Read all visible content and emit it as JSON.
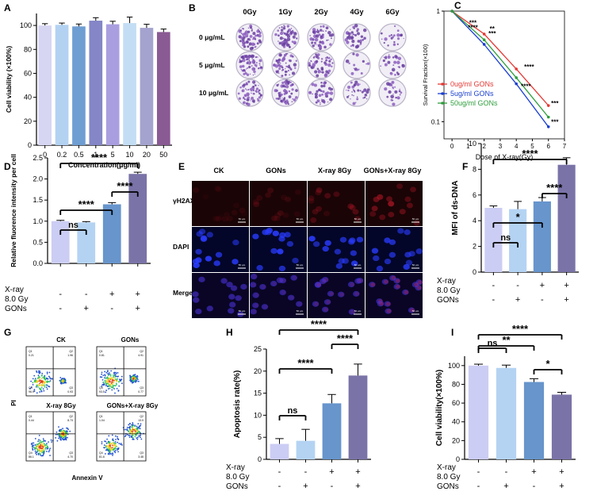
{
  "panel_letters": [
    "A",
    "B",
    "C",
    "D",
    "E",
    "F",
    "G",
    "H",
    "I"
  ],
  "chart_data": [
    {
      "id": "A",
      "type": "bar",
      "title": "",
      "xlabel": "Concentration(μg/ml)",
      "ylabel": "Cell viability (×100%)",
      "categories": [
        "0",
        "0.2",
        "0.5",
        "1",
        "5",
        "10",
        "20",
        "50"
      ],
      "values": [
        100,
        100.5,
        99.2,
        104,
        101,
        102,
        98,
        94.5
      ],
      "errors": [
        1.5,
        1.5,
        2,
        2.5,
        2.5,
        5,
        3,
        2.5
      ],
      "colors": [
        "#d6d6f3",
        "#b3d2f2",
        "#6f9ed3",
        "#8486c7",
        "#a99fe0",
        "#c3def4",
        "#a4a3cf",
        "#8a5a94"
      ],
      "yticks": [
        0,
        20,
        40,
        60,
        80,
        100
      ],
      "ylim": [
        0,
        110
      ]
    },
    {
      "id": "C",
      "type": "line",
      "title": "",
      "xlabel": "Dose of X-ray(Gy)",
      "ylabel": "Survival Fraction(×100)",
      "yscale": "log",
      "ylim": [
        0.07,
        1
      ],
      "xlim": [
        -0.5,
        7
      ],
      "xticks": [
        "0",
        "1",
        "2",
        "3",
        "4",
        "5",
        "6",
        "7"
      ],
      "yticks": [
        "1",
        "0.1"
      ],
      "legend_loc": "bottom-left",
      "series": [
        {
          "name": "0ug/ml  GONs",
          "color": "#e53935",
          "x": [
            0,
            2,
            4,
            6
          ],
          "y": [
            1,
            0.62,
            0.3,
            0.14
          ]
        },
        {
          "name": "5ug/ml  GONs",
          "color": "#1a3fd1",
          "x": [
            0,
            2,
            4,
            6
          ],
          "y": [
            1,
            0.5,
            0.22,
            0.09
          ]
        },
        {
          "name": "50ug/ml GONs",
          "color": "#2e9e3c",
          "x": [
            0,
            2,
            4,
            6
          ],
          "y": [
            1,
            0.55,
            0.25,
            0.11
          ]
        }
      ],
      "annotations": [
        "***",
        "****",
        "**",
        "***",
        "****",
        "****",
        "***",
        "***"
      ]
    },
    {
      "id": "D",
      "type": "bar",
      "title": "",
      "xlabel": "",
      "ylabel": "Relative fluorence intensity per cell",
      "categories": [
        "1",
        "2",
        "3",
        "4"
      ],
      "values": [
        1.0,
        0.97,
        1.4,
        2.12
      ],
      "errors": [
        0.02,
        0.02,
        0.04,
        0.04
      ],
      "colors": [
        "#cccdf4",
        "#b4d3f3",
        "#6795cc",
        "#7a73a8"
      ],
      "yticks": [
        "0.0",
        "0.5",
        "1.0",
        "1.5",
        "2.0",
        "2.5"
      ],
      "ylim": [
        0,
        2.5
      ],
      "brackets": [
        {
          "from": 0,
          "to": 1,
          "label": "ns"
        },
        {
          "from": 0,
          "to": 2,
          "label": "****"
        },
        {
          "from": 2,
          "to": 3,
          "label": "****"
        },
        {
          "from": 0,
          "to": 3,
          "label": "****"
        }
      ]
    },
    {
      "id": "F",
      "type": "bar",
      "title": "",
      "xlabel": "",
      "ylabel": "MFI of ds-DNA",
      "categories": [
        "1",
        "2",
        "3",
        "4"
      ],
      "values": [
        5.0,
        4.9,
        5.5,
        8.35
      ],
      "errors": [
        0.15,
        0.6,
        0.3,
        0.55
      ],
      "colors": [
        "#cccdf4",
        "#b4d3f3",
        "#6795cc",
        "#7a73a8"
      ],
      "yticks": [
        "0",
        "2",
        "4",
        "6",
        "8",
        "10"
      ],
      "ylim": [
        0,
        10
      ],
      "brackets": [
        {
          "from": 0,
          "to": 1,
          "label": "ns"
        },
        {
          "from": 0,
          "to": 2,
          "label": "*"
        },
        {
          "from": 2,
          "to": 3,
          "label": "****"
        },
        {
          "from": 0,
          "to": 3,
          "label": "****"
        }
      ]
    },
    {
      "id": "H",
      "type": "bar",
      "title": "",
      "xlabel": "",
      "ylabel": "Apoptosis rate(%)",
      "categories": [
        "1",
        "2",
        "3",
        "4"
      ],
      "values": [
        3.5,
        4.2,
        12.7,
        19.0
      ],
      "errors": [
        1.2,
        2.6,
        2.0,
        2.6
      ],
      "colors": [
        "#cccdf4",
        "#b4d3f3",
        "#6795cc",
        "#7a73a8"
      ],
      "yticks": [
        "0",
        "5",
        "10",
        "15",
        "20",
        "25"
      ],
      "ylim": [
        0,
        25
      ],
      "brackets": [
        {
          "from": 0,
          "to": 1,
          "label": "ns"
        },
        {
          "from": 0,
          "to": 2,
          "label": "****"
        },
        {
          "from": 2,
          "to": 3,
          "label": "****"
        },
        {
          "from": 0,
          "to": 3,
          "label": "****"
        }
      ]
    },
    {
      "id": "I",
      "type": "bar",
      "title": "",
      "xlabel": "",
      "ylabel": "Cell viability(×100%)",
      "categories": [
        "1",
        "2",
        "3",
        "4"
      ],
      "values": [
        100,
        97.5,
        82.5,
        69
      ],
      "errors": [
        1.5,
        3,
        3.5,
        2.5
      ],
      "colors": [
        "#cccdf4",
        "#b4d3f3",
        "#6795cc",
        "#7a73a8"
      ],
      "yticks": [
        "0",
        "20",
        "40",
        "60",
        "80",
        "100"
      ],
      "ylim": [
        0,
        110
      ],
      "brackets": [
        {
          "from": 0,
          "to": 1,
          "label": "ns"
        },
        {
          "from": 0,
          "to": 2,
          "label": "**"
        },
        {
          "from": 2,
          "to": 3,
          "label": "*"
        },
        {
          "from": 0,
          "to": 3,
          "label": "****"
        }
      ]
    }
  ],
  "treatment_table": {
    "labels": [
      "X-ray",
      "8.0 Gy",
      "GONs"
    ],
    "xray_row": [
      "-",
      "-",
      "+",
      "+"
    ],
    "gons_row": [
      "-",
      "+",
      "-",
      "+"
    ]
  },
  "panel_B": {
    "columns": [
      "0Gy",
      "1Gy",
      "2Gy",
      "4Gy",
      "6Gy"
    ],
    "rows": [
      "0 μg/mL",
      "5 μg/mL",
      "10 μg/mL"
    ],
    "density": [
      [
        0.95,
        0.85,
        0.75,
        0.55,
        0.3
      ],
      [
        0.9,
        0.8,
        0.7,
        0.2,
        0.4
      ],
      [
        0.85,
        0.75,
        0.65,
        0.5,
        0.35
      ]
    ]
  },
  "panel_E": {
    "columns": [
      "CK",
      "GONs",
      "X-ray 8Gy",
      "GONs+X-ray 8Gy"
    ],
    "rows": [
      "γH2AX",
      "DAPI",
      "Merge"
    ],
    "scale_label": "50 μm"
  },
  "panel_G": {
    "titles": [
      "CK",
      "GONs",
      "X-ray 8Gy",
      "GONs+X-ray 8Gy"
    ],
    "xlabel": "Annexin V",
    "ylabel": "PI",
    "quadrants": [
      [
        "Q1",
        "Q2",
        "Q3",
        "Q4"
      ],
      [
        "Q1",
        "Q2",
        "Q3",
        "Q4"
      ],
      [
        "Q1",
        "Q2",
        "Q3",
        "Q4"
      ],
      [
        "Q1",
        "Q2",
        "Q3",
        "Q4"
      ]
    ],
    "percentages": [
      [
        "0.21",
        "1.96",
        "0.93",
        "96.9"
      ],
      [
        "0.81",
        "4.91",
        "0.77",
        "93.5"
      ],
      [
        "0.44",
        "8.73",
        "4.70",
        "86.1"
      ],
      [
        "1.04",
        "13.9",
        "3.48",
        "81.6"
      ]
    ]
  }
}
